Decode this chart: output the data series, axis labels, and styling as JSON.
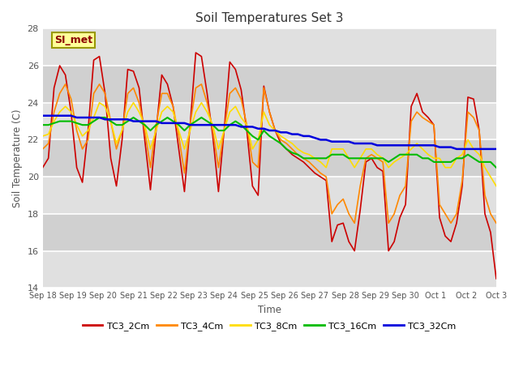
{
  "title": "Soil Temperatures Set 3",
  "xlabel": "Time",
  "ylabel": "Soil Temperature (C)",
  "ylim": [
    14,
    28
  ],
  "yticks": [
    14,
    16,
    18,
    20,
    22,
    24,
    26,
    28
  ],
  "background_color": "#ffffff",
  "plot_bg_color": "#d8d8d8",
  "band_color_light": "#e8e8e8",
  "band_color_dark": "#d0d0d0",
  "annotation_text": "SI_met",
  "legend_entries": [
    "TC3_2Cm",
    "TC3_4Cm",
    "TC3_8Cm",
    "TC3_16Cm",
    "TC3_32Cm"
  ],
  "colors": [
    "#cc0000",
    "#ff8800",
    "#ffdd00",
    "#00bb00",
    "#0000dd"
  ],
  "linewidths": [
    1.2,
    1.2,
    1.2,
    1.5,
    1.8
  ],
  "x_labels": [
    "Sep 18",
    "Sep 19",
    "Sep 20",
    "Sep 21",
    "Sep 22",
    "Sep 23",
    "Sep 24",
    "Sep 25",
    "Sep 26",
    "Sep 27",
    "Sep 28",
    "Sep 29",
    "Sep 30",
    "Oct 1",
    "Oct 2",
    "Oct 3"
  ],
  "tc3_2cm": [
    20.5,
    21.0,
    24.8,
    26.0,
    25.5,
    23.5,
    20.5,
    19.7,
    22.5,
    26.3,
    26.5,
    24.5,
    21.0,
    19.5,
    22.0,
    25.8,
    25.7,
    24.8,
    22.0,
    19.3,
    22.5,
    25.5,
    25.0,
    23.8,
    21.5,
    19.2,
    22.8,
    26.7,
    26.5,
    24.5,
    22.2,
    19.2,
    22.5,
    26.2,
    25.8,
    24.7,
    22.5,
    19.5,
    19.0,
    24.9,
    23.5,
    22.5,
    21.8,
    21.5,
    21.2,
    21.0,
    20.8,
    20.5,
    20.2,
    20.0,
    19.8,
    16.5,
    17.4,
    17.5,
    16.5,
    16.0,
    18.2,
    20.8,
    21.0,
    20.5,
    20.3,
    16.0,
    16.5,
    17.8,
    18.5,
    23.8,
    24.5,
    23.5,
    23.2,
    22.8,
    17.8,
    16.8,
    16.5,
    17.5,
    19.5,
    24.3,
    24.2,
    22.5,
    18.0,
    17.0,
    14.5
  ],
  "tc3_4cm": [
    21.5,
    21.8,
    23.5,
    24.5,
    25.0,
    24.2,
    22.5,
    21.5,
    22.0,
    24.5,
    25.0,
    24.5,
    23.0,
    21.5,
    22.5,
    24.5,
    24.8,
    24.0,
    22.5,
    20.5,
    22.8,
    24.5,
    24.5,
    23.8,
    22.2,
    20.2,
    22.8,
    24.8,
    25.0,
    24.0,
    22.5,
    20.5,
    22.5,
    24.5,
    24.8,
    24.2,
    22.8,
    20.8,
    20.5,
    24.8,
    23.5,
    22.5,
    22.0,
    21.8,
    21.5,
    21.2,
    21.0,
    20.8,
    20.5,
    20.2,
    20.0,
    18.0,
    18.5,
    18.8,
    18.0,
    17.5,
    19.5,
    21.0,
    21.2,
    21.0,
    20.8,
    17.5,
    18.0,
    19.0,
    19.5,
    23.0,
    23.5,
    23.2,
    23.0,
    22.8,
    18.5,
    18.0,
    17.5,
    18.0,
    19.8,
    23.5,
    23.2,
    22.5,
    19.0,
    18.0,
    17.5
  ],
  "tc3_8cm": [
    22.2,
    22.3,
    23.0,
    23.5,
    23.8,
    23.5,
    22.8,
    22.2,
    22.5,
    23.2,
    24.0,
    23.8,
    23.0,
    21.8,
    22.5,
    23.5,
    24.0,
    23.5,
    22.8,
    21.5,
    22.5,
    23.5,
    23.8,
    23.5,
    22.5,
    21.5,
    22.5,
    23.5,
    24.0,
    23.5,
    22.8,
    21.5,
    22.5,
    23.5,
    23.8,
    23.2,
    22.8,
    21.5,
    22.0,
    23.5,
    22.8,
    22.5,
    22.2,
    22.0,
    21.8,
    21.5,
    21.3,
    21.2,
    21.0,
    20.8,
    20.5,
    21.5,
    21.5,
    21.5,
    21.0,
    20.5,
    21.0,
    21.5,
    21.5,
    21.2,
    21.0,
    20.5,
    20.8,
    21.0,
    21.2,
    21.5,
    21.8,
    21.5,
    21.2,
    21.0,
    21.0,
    20.5,
    20.5,
    21.0,
    21.2,
    22.0,
    21.5,
    21.2,
    20.5,
    20.0,
    19.5
  ],
  "tc3_16cm": [
    22.8,
    22.8,
    22.9,
    23.0,
    23.0,
    23.0,
    22.9,
    22.8,
    22.8,
    23.0,
    23.2,
    23.2,
    23.0,
    22.8,
    22.8,
    23.0,
    23.2,
    23.0,
    22.8,
    22.5,
    22.8,
    23.0,
    23.2,
    23.0,
    22.8,
    22.5,
    22.8,
    23.0,
    23.2,
    23.0,
    22.8,
    22.5,
    22.5,
    22.8,
    23.0,
    22.8,
    22.5,
    22.2,
    22.0,
    22.5,
    22.2,
    22.0,
    21.8,
    21.5,
    21.3,
    21.2,
    21.0,
    21.0,
    21.0,
    21.0,
    21.0,
    21.2,
    21.2,
    21.2,
    21.0,
    21.0,
    21.0,
    21.0,
    21.0,
    21.0,
    21.0,
    20.8,
    21.0,
    21.2,
    21.2,
    21.2,
    21.2,
    21.0,
    21.0,
    20.8,
    20.8,
    20.8,
    20.8,
    21.0,
    21.0,
    21.2,
    21.0,
    20.8,
    20.8,
    20.8,
    20.5
  ],
  "tc3_32cm": [
    23.3,
    23.3,
    23.3,
    23.3,
    23.3,
    23.3,
    23.2,
    23.2,
    23.2,
    23.2,
    23.2,
    23.1,
    23.1,
    23.1,
    23.1,
    23.1,
    23.0,
    23.0,
    23.0,
    23.0,
    23.0,
    22.9,
    22.9,
    22.9,
    22.9,
    22.9,
    22.8,
    22.8,
    22.8,
    22.8,
    22.8,
    22.8,
    22.8,
    22.8,
    22.8,
    22.7,
    22.7,
    22.7,
    22.6,
    22.6,
    22.5,
    22.5,
    22.4,
    22.4,
    22.3,
    22.3,
    22.2,
    22.2,
    22.1,
    22.0,
    22.0,
    21.9,
    21.9,
    21.9,
    21.9,
    21.8,
    21.8,
    21.8,
    21.8,
    21.7,
    21.7,
    21.7,
    21.7,
    21.7,
    21.7,
    21.7,
    21.7,
    21.7,
    21.7,
    21.7,
    21.6,
    21.6,
    21.6,
    21.5,
    21.5,
    21.5,
    21.5,
    21.5,
    21.5,
    21.5,
    21.5
  ]
}
